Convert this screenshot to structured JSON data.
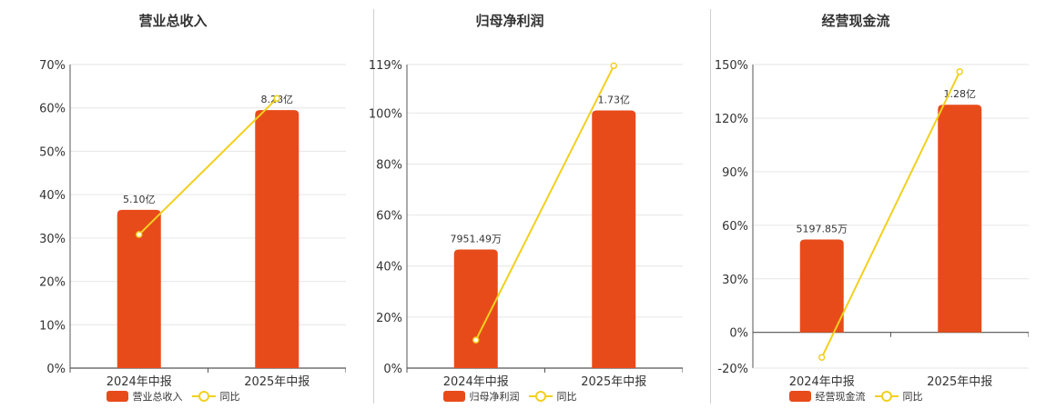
{
  "colors": {
    "bar": "#e84b1a",
    "line": "#f2d01f",
    "grid": "#e6e6e6",
    "axis": "#555555"
  },
  "chart_data": [
    {
      "type": "bar",
      "title": "营业总收入",
      "categories": [
        "2024年中报",
        "2025年中报"
      ],
      "yticks": [
        "0%",
        "10%",
        "20%",
        "30%",
        "40%",
        "50%",
        "60%",
        "70%"
      ],
      "ylim": [
        0,
        70
      ],
      "series": [
        {
          "name": "营业总收入",
          "type": "bar",
          "values": [
            36.5,
            59.5
          ],
          "labels": [
            "5.10亿",
            "8.28亿"
          ]
        },
        {
          "name": "同比",
          "type": "line",
          "values": [
            30.8,
            62.2
          ]
        }
      ]
    },
    {
      "type": "bar",
      "title": "归母净利润",
      "categories": [
        "2024年中报",
        "2025年中报"
      ],
      "yticks": [
        "0%",
        "20%",
        "40%",
        "60%",
        "80%",
        "100%",
        "119%"
      ],
      "ytick_values": [
        0,
        20,
        40,
        60,
        80,
        100,
        119
      ],
      "ylim": [
        0,
        119
      ],
      "series": [
        {
          "name": "归母净利润",
          "type": "bar",
          "values": [
            46.5,
            101
          ],
          "labels": [
            "7951.49万",
            "1.73亿"
          ]
        },
        {
          "name": "同比",
          "type": "line",
          "values": [
            11,
            118.5
          ]
        }
      ]
    },
    {
      "type": "bar",
      "title": "经营现金流",
      "categories": [
        "2024年中报",
        "2025年中报"
      ],
      "yticks": [
        "-20%",
        "0%",
        "30%",
        "60%",
        "90%",
        "120%",
        "150%"
      ],
      "ytick_values": [
        -20,
        0,
        30,
        60,
        90,
        120,
        150
      ],
      "ylim": [
        -20,
        150
      ],
      "series": [
        {
          "name": "经营现金流",
          "type": "bar",
          "values": [
            52,
            127.5
          ],
          "labels": [
            "5197.85万",
            "1.28亿"
          ]
        },
        {
          "name": "同比",
          "type": "line",
          "values": [
            -14,
            146
          ]
        }
      ]
    }
  ],
  "legends": [
    {
      "bar": "营业总收入",
      "line": "同比"
    },
    {
      "bar": "归母净利润",
      "line": "同比"
    },
    {
      "bar": "经营现金流",
      "line": "同比"
    }
  ]
}
